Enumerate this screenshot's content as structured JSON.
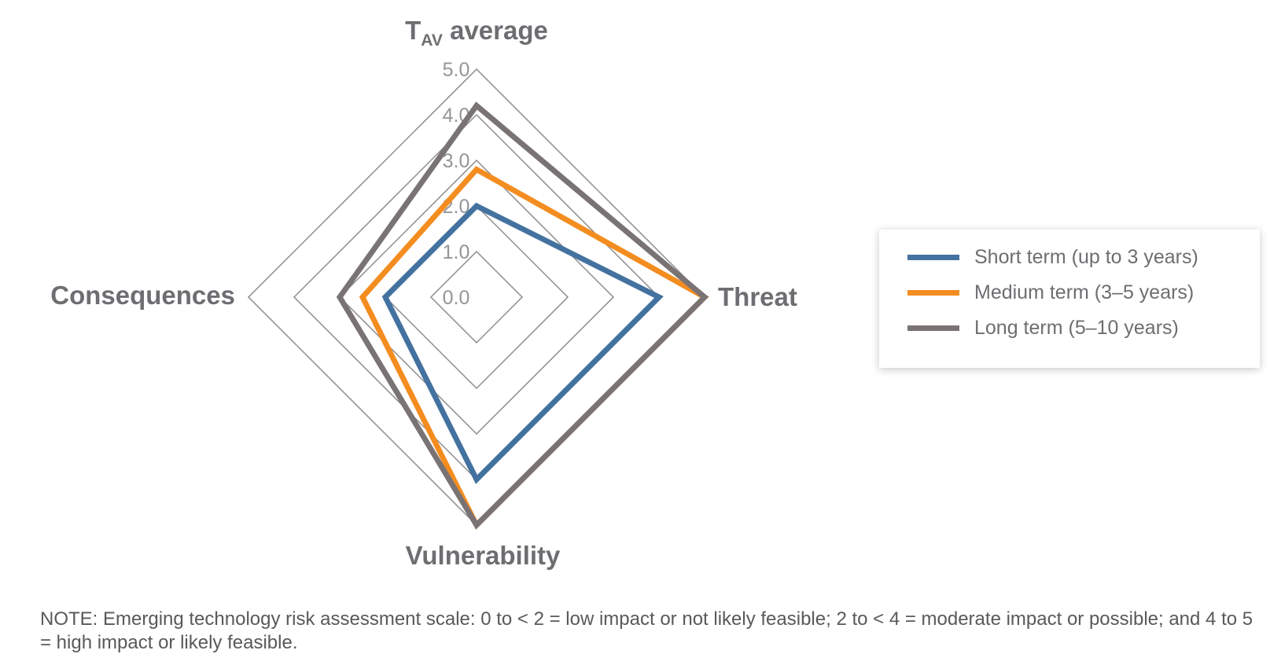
{
  "chart_data": {
    "type": "radar",
    "axes": [
      {
        "key": "tav",
        "label_main": "T",
        "label_sub": "AV",
        "label_rest": " average"
      },
      {
        "key": "threat",
        "label": "Threat"
      },
      {
        "key": "vulnerability",
        "label": "Vulnerability"
      },
      {
        "key": "consequences",
        "label": "Consequences"
      }
    ],
    "ticks": [
      "0.0",
      "1.0",
      "2.0",
      "3.0",
      "4.0",
      "5.0"
    ],
    "range": [
      0,
      5
    ],
    "series": [
      {
        "name": "Short term (up to 3 years)",
        "color": "#4472a0",
        "values": [
          2.0,
          4.0,
          4.0,
          2.0
        ]
      },
      {
        "name": "Medium term (3–5 years)",
        "color": "#f48d20",
        "values": [
          2.8,
          5.0,
          5.0,
          2.5
        ]
      },
      {
        "name": "Long term (5–10 years)",
        "color": "#7a7374",
        "values": [
          4.2,
          5.0,
          5.0,
          3.0
        ]
      }
    ],
    "legend_position": "right",
    "grid": true
  },
  "note": "NOTE: Emerging technology risk assessment scale: 0 to < 2 = low impact or not likely feasible; 2 to < 4 = moderate impact or possible; and 4 to 5 = high impact or likely feasible."
}
